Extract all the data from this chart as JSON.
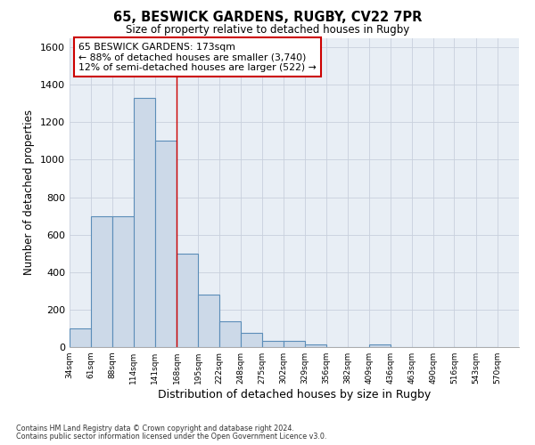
{
  "title_line1": "65, BESWICK GARDENS, RUGBY, CV22 7PR",
  "title_line2": "Size of property relative to detached houses in Rugby",
  "xlabel": "Distribution of detached houses by size in Rugby",
  "ylabel": "Number of detached properties",
  "footnote1": "Contains HM Land Registry data © Crown copyright and database right 2024.",
  "footnote2": "Contains public sector information licensed under the Open Government Licence v3.0.",
  "annotation_title": "65 BESWICK GARDENS: 173sqm",
  "annotation_line1": "← 88% of detached houses are smaller (3,740)",
  "annotation_line2": "12% of semi-detached houses are larger (522) →",
  "bar_left_edges": [
    34,
    61,
    88,
    114,
    141,
    168,
    195,
    222,
    248,
    275,
    302,
    329,
    356,
    382,
    409,
    436,
    463,
    490,
    516,
    543
  ],
  "bar_heights": [
    100,
    700,
    700,
    1330,
    1100,
    500,
    280,
    140,
    75,
    35,
    35,
    15,
    0,
    0,
    15,
    0,
    0,
    0,
    0,
    0
  ],
  "bin_width": 27,
  "bar_facecolor": "#ccd9e8",
  "bar_edgecolor": "#5b8db8",
  "bar_linewidth": 0.8,
  "grid_color": "#c8d0dc",
  "background_color": "#e8eef5",
  "vline_color": "#cc0000",
  "vline_x": 168,
  "annotation_box_edgecolor": "#cc0000",
  "ylim": [
    0,
    1650
  ],
  "yticks": [
    0,
    200,
    400,
    600,
    800,
    1000,
    1200,
    1400,
    1600
  ],
  "xtick_labels": [
    "34sqm",
    "61sqm",
    "88sqm",
    "114sqm",
    "141sqm",
    "168sqm",
    "195sqm",
    "222sqm",
    "248sqm",
    "275sqm",
    "302sqm",
    "329sqm",
    "356sqm",
    "382sqm",
    "409sqm",
    "436sqm",
    "463sqm",
    "490sqm",
    "516sqm",
    "543sqm",
    "570sqm"
  ],
  "xlim_left": 34,
  "xlim_right": 597
}
